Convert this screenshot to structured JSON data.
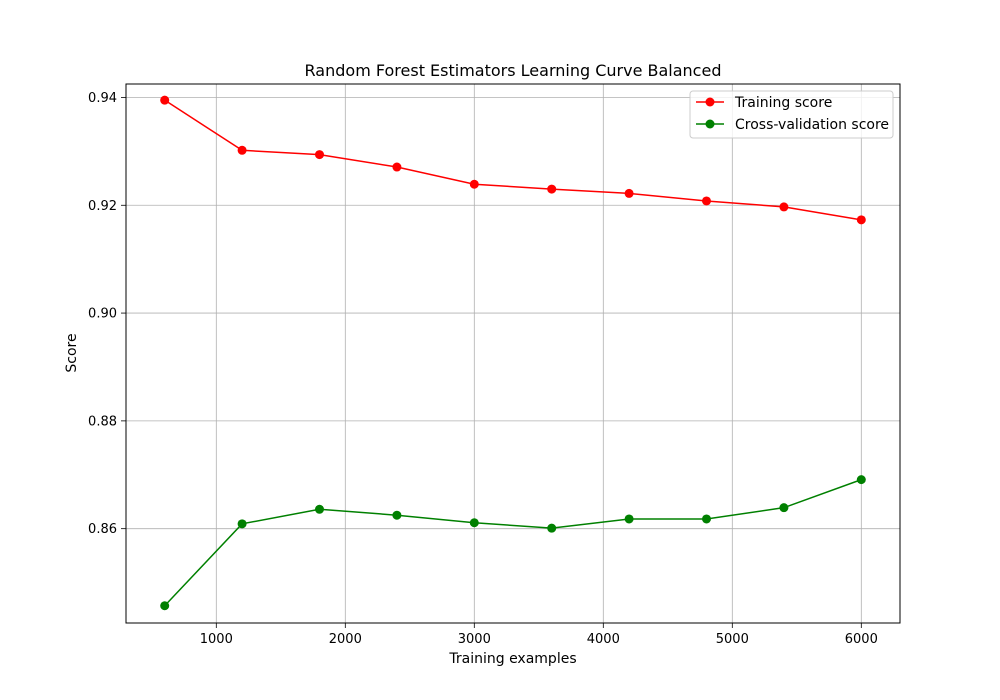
{
  "chart_data": {
    "type": "line",
    "title": "Random Forest Estimators Learning Curve Balanced",
    "xlabel": "Training examples",
    "ylabel": "Score",
    "xlim": [
      300,
      6300
    ],
    "ylim": [
      0.8425,
      0.9425
    ],
    "xticks": [
      1000,
      2000,
      3000,
      4000,
      5000,
      6000
    ],
    "yticks": [
      0.86,
      0.88,
      0.9,
      0.92,
      0.94
    ],
    "ytick_labels": [
      "0.86",
      "0.88",
      "0.90",
      "0.92",
      "0.94"
    ],
    "grid": true,
    "legend_position": "top-right",
    "x": [
      600,
      1200,
      1800,
      2400,
      3000,
      3600,
      4200,
      4800,
      5400,
      6000
    ],
    "series": [
      {
        "name": "Training score",
        "color": "#ff0000",
        "values": [
          0.9395,
          0.9302,
          0.9294,
          0.9271,
          0.9239,
          0.923,
          0.9222,
          0.9208,
          0.9197,
          0.9173
        ]
      },
      {
        "name": "Cross-validation score",
        "color": "#008000",
        "values": [
          0.8457,
          0.8609,
          0.8636,
          0.8625,
          0.8611,
          0.8601,
          0.8618,
          0.8618,
          0.8639,
          0.8691
        ]
      }
    ]
  }
}
